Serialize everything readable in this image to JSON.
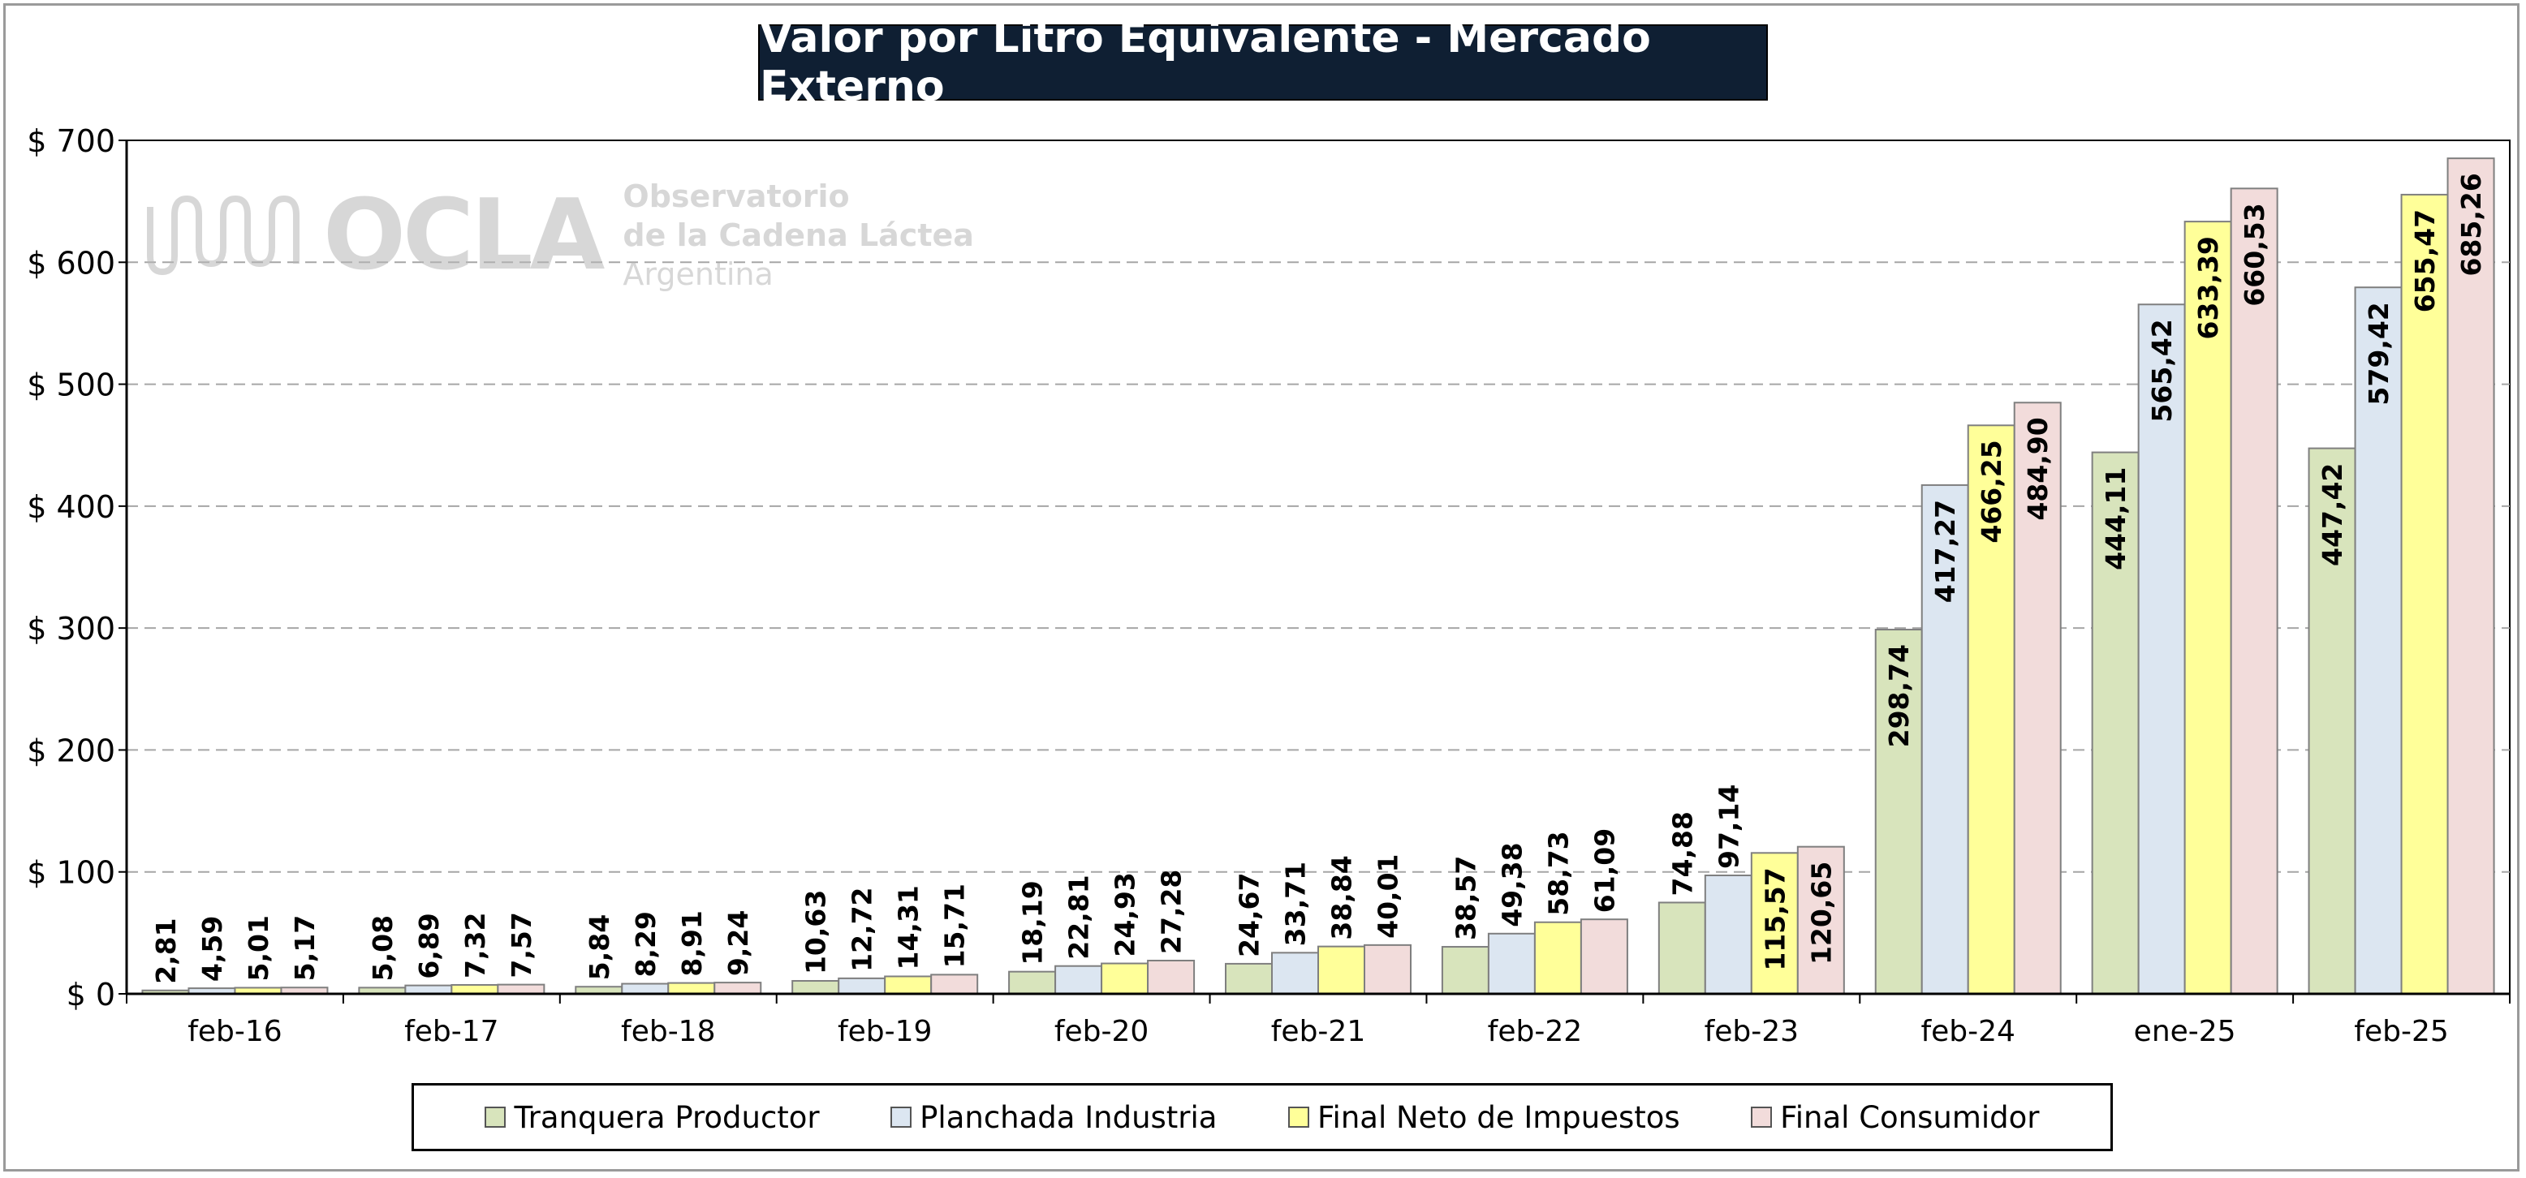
{
  "chart_data": {
    "type": "bar",
    "title": "Valor por Litro Equivalente - Mercado Externo",
    "categories": [
      "feb-16",
      "feb-17",
      "feb-18",
      "feb-19",
      "feb-20",
      "feb-21",
      "feb-22",
      "feb-23",
      "feb-24",
      "ene-25",
      "feb-25"
    ],
    "series": [
      {
        "name": "Tranquera Productor",
        "color": "#d8e4bc",
        "values": [
          2.81,
          5.08,
          5.84,
          10.63,
          18.19,
          24.67,
          38.57,
          74.88,
          298.74,
          444.11,
          447.42
        ],
        "labels": [
          "2,81",
          "5,08",
          "5,84",
          "10,63",
          "18,19",
          "24,67",
          "38,57",
          "74,88",
          "298,74",
          "444,11",
          "447,42"
        ]
      },
      {
        "name": "Planchada Industria",
        "color": "#dce6f1",
        "values": [
          4.59,
          6.89,
          8.29,
          12.72,
          22.81,
          33.71,
          49.38,
          97.14,
          417.27,
          565.42,
          579.42
        ],
        "labels": [
          "4,59",
          "6,89",
          "8,29",
          "12,72",
          "22,81",
          "33,71",
          "49,38",
          "97,14",
          "417,27",
          "565,42",
          "579,42"
        ]
      },
      {
        "name": "Final Neto de Impuestos",
        "color": "#ffff99",
        "values": [
          5.01,
          7.32,
          8.91,
          14.31,
          24.93,
          38.84,
          58.73,
          115.57,
          466.25,
          633.39,
          655.47
        ],
        "labels": [
          "5,01",
          "7,32",
          "8,91",
          "14,31",
          "24,93",
          "38,84",
          "58,73",
          "115,57",
          "466,25",
          "633,39",
          "655,47"
        ]
      },
      {
        "name": "Final Consumidor",
        "color": "#f2dcdb",
        "values": [
          5.17,
          7.57,
          9.24,
          15.71,
          27.28,
          40.01,
          61.09,
          120.65,
          484.9,
          660.53,
          685.26
        ],
        "labels": [
          "5,17",
          "7,57",
          "9,24",
          "15,71",
          "27,28",
          "40,01",
          "61,09",
          "120,65",
          "484,90",
          "660,53",
          "685,26"
        ]
      }
    ],
    "ylim": [
      0,
      700
    ],
    "yticks": [
      0,
      100,
      200,
      300,
      400,
      500,
      600,
      700
    ],
    "ytick_labels": [
      "$ 0",
      "$ 100",
      "$ 200",
      "$ 300",
      "$ 400",
      "$ 500",
      "$ 600",
      "$ 700"
    ],
    "grid": true,
    "legend_position": "bottom"
  },
  "watermark": {
    "logo_text": "OCLA",
    "line1": "Observatorio",
    "line2": "de la Cadena Láctea",
    "line3": "Argentina"
  }
}
